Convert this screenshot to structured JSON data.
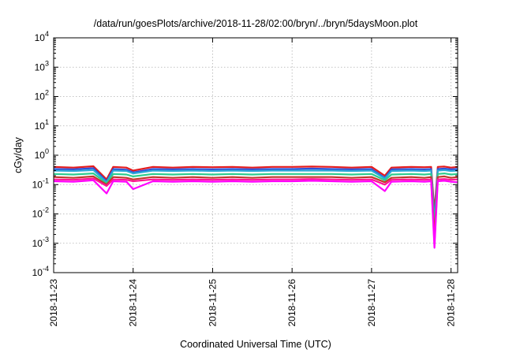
{
  "chart_data": {
    "type": "line",
    "title": "/data/run/goesPlots/archive/2018-11-28/02:00/bryn/../bryn/5daysMoon.plot",
    "xlabel": "Coordinated Universal Time (UTC)",
    "ylabel": "cGy/day",
    "yscale": "log",
    "ylim": [
      0.0001,
      10000
    ],
    "xlim": [
      "2018-11-23T00:00",
      "2018-11-28T02:00"
    ],
    "grid": true,
    "x_tick_labels": [
      "2018-11-23",
      "2018-11-24",
      "2018-11-25",
      "2018-11-26",
      "2018-11-27",
      "2018-11-28"
    ],
    "y_ticks": [
      {
        "base": "10",
        "exp": "-4",
        "value": 0.0001
      },
      {
        "base": "10",
        "exp": "-3",
        "value": 0.001
      },
      {
        "base": "10",
        "exp": "-2",
        "value": 0.01
      },
      {
        "base": "10",
        "exp": "-1",
        "value": 0.1
      },
      {
        "base": "10",
        "exp": "0",
        "value": 1
      },
      {
        "base": "10",
        "exp": "1",
        "value": 10
      },
      {
        "base": "10",
        "exp": "2",
        "value": 100
      },
      {
        "base": "10",
        "exp": "3",
        "value": 1000
      },
      {
        "base": "10",
        "exp": "4",
        "value": 10000
      }
    ],
    "x": [
      "2018-11-23T00:00",
      "2018-11-23T06:00",
      "2018-11-23T12:00",
      "2018-11-23T16:00",
      "2018-11-23T18:00",
      "2018-11-23T22:00",
      "2018-11-24T00:00",
      "2018-11-24T06:00",
      "2018-11-24T12:00",
      "2018-11-24T18:00",
      "2018-11-25T00:00",
      "2018-11-25T06:00",
      "2018-11-25T12:00",
      "2018-11-25T18:00",
      "2018-11-26T00:00",
      "2018-11-26T06:00",
      "2018-11-26T12:00",
      "2018-11-26T18:00",
      "2018-11-27T00:00",
      "2018-11-27T04:00",
      "2018-11-27T06:00",
      "2018-11-27T12:00",
      "2018-11-27T16:00",
      "2018-11-27T18:00",
      "2018-11-27T19:00",
      "2018-11-27T20:00",
      "2018-11-27T22:00",
      "2018-11-28T00:00",
      "2018-11-28T02:00"
    ],
    "series": [
      {
        "color": "#e41a1c",
        "values": [
          0.4,
          0.38,
          0.42,
          0.15,
          0.4,
          0.38,
          0.3,
          0.4,
          0.38,
          0.4,
          0.39,
          0.4,
          0.38,
          0.4,
          0.4,
          0.41,
          0.4,
          0.38,
          0.4,
          0.2,
          0.38,
          0.4,
          0.39,
          0.4,
          0.012,
          0.4,
          0.41,
          0.38,
          0.4
        ]
      },
      {
        "color": "#2f4fd8",
        "values": [
          0.34,
          0.33,
          0.36,
          0.13,
          0.34,
          0.32,
          0.26,
          0.34,
          0.33,
          0.34,
          0.33,
          0.34,
          0.33,
          0.34,
          0.34,
          0.35,
          0.34,
          0.33,
          0.34,
          0.17,
          0.33,
          0.34,
          0.33,
          0.34,
          0.006,
          0.34,
          0.35,
          0.33,
          0.34
        ]
      },
      {
        "color": "#2aa8d8",
        "values": [
          0.3,
          0.29,
          0.31,
          0.12,
          0.3,
          0.29,
          0.24,
          0.3,
          0.29,
          0.3,
          0.29,
          0.3,
          0.29,
          0.3,
          0.3,
          0.3,
          0.3,
          0.29,
          0.3,
          0.16,
          0.29,
          0.3,
          0.29,
          0.3,
          0.005,
          0.3,
          0.31,
          0.29,
          0.3
        ]
      },
      {
        "color": "#2ecc8e",
        "values": [
          0.23,
          0.22,
          0.24,
          0.11,
          0.23,
          0.22,
          0.19,
          0.23,
          0.22,
          0.23,
          0.22,
          0.23,
          0.22,
          0.23,
          0.23,
          0.23,
          0.23,
          0.22,
          0.23,
          0.14,
          0.22,
          0.23,
          0.22,
          0.23,
          0.003,
          0.23,
          0.24,
          0.22,
          0.23
        ]
      },
      {
        "color": "#c0392b",
        "values": [
          0.18,
          0.17,
          0.19,
          0.1,
          0.18,
          0.17,
          0.15,
          0.18,
          0.17,
          0.18,
          0.17,
          0.18,
          0.17,
          0.18,
          0.18,
          0.18,
          0.18,
          0.17,
          0.18,
          0.12,
          0.17,
          0.18,
          0.17,
          0.18,
          0.0015,
          0.18,
          0.19,
          0.17,
          0.18
        ]
      },
      {
        "color": "#ff1493",
        "values": [
          0.15,
          0.145,
          0.16,
          0.09,
          0.15,
          0.145,
          0.13,
          0.15,
          0.145,
          0.15,
          0.145,
          0.15,
          0.145,
          0.15,
          0.15,
          0.155,
          0.15,
          0.145,
          0.15,
          0.1,
          0.145,
          0.15,
          0.145,
          0.15,
          0.001,
          0.15,
          0.155,
          0.145,
          0.15
        ]
      },
      {
        "color": "#ff00ff",
        "values": [
          0.13,
          0.125,
          0.14,
          0.05,
          0.13,
          0.125,
          0.07,
          0.13,
          0.125,
          0.13,
          0.125,
          0.13,
          0.125,
          0.13,
          0.13,
          0.135,
          0.13,
          0.125,
          0.13,
          0.06,
          0.125,
          0.13,
          0.125,
          0.13,
          0.0007,
          0.13,
          0.135,
          0.125,
          0.12
        ]
      }
    ]
  }
}
